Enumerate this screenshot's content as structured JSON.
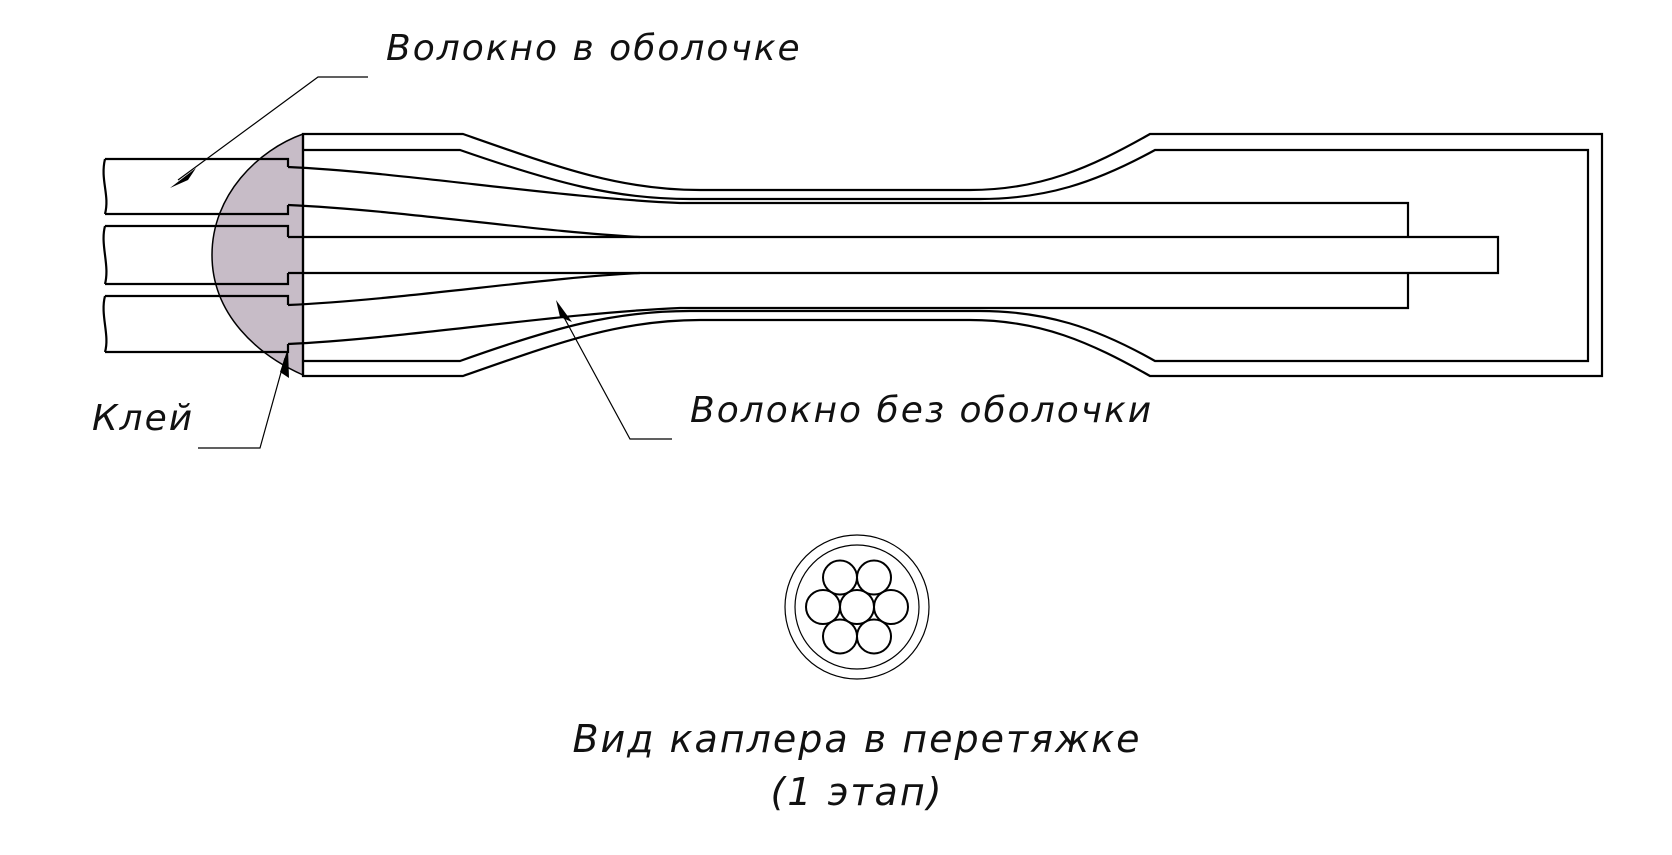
{
  "labels": {
    "fiber_with_cladding": "Волокно в оболочке",
    "fiber_without_cladding": "Волокно без оболочки",
    "glue": "Клей",
    "caption_line1": "Вид каплера в перетяжке",
    "caption_line2": "(1 этап)"
  },
  "colors": {
    "line": "#000000",
    "glue_fill": "#c7bcc7",
    "background": "#ffffff"
  },
  "cross_section": {
    "fiber_count": 7,
    "arrangement": "hexagonal"
  }
}
